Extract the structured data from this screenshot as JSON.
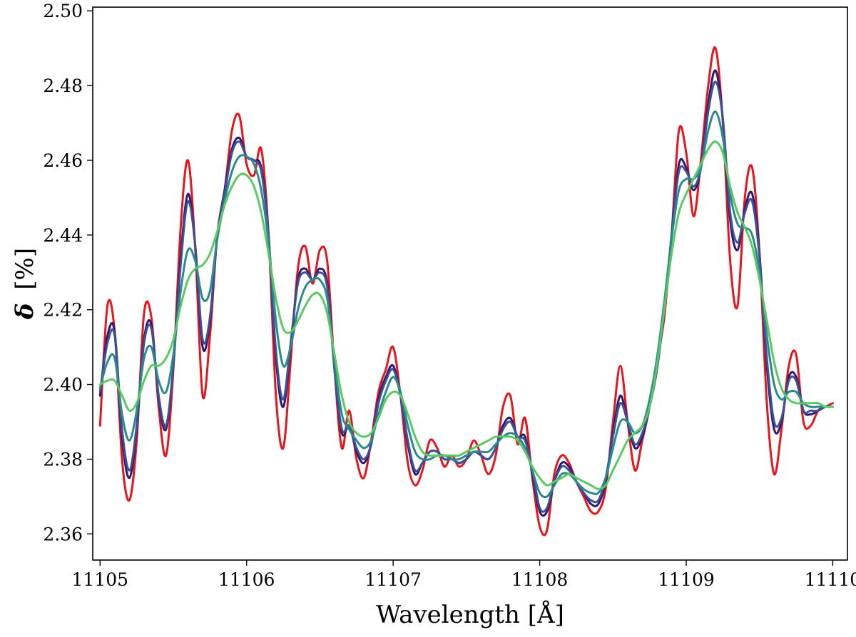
{
  "chart_data": {
    "type": "line",
    "xlabel": "Wavelength [Å]",
    "ylabel_symbol": "δ",
    "ylabel_unit": "[%]",
    "xlim": [
      11104.95,
      11110.1
    ],
    "ylim": [
      2.353,
      2.501
    ],
    "x_ticks": [
      11105,
      11106,
      11107,
      11108,
      11109,
      11110
    ],
    "x_tick_labels": [
      "11105",
      "11106",
      "11107",
      "11108",
      "11109",
      "11110"
    ],
    "y_ticks": [
      2.36,
      2.38,
      2.4,
      2.42,
      2.44,
      2.46,
      2.48,
      2.5
    ],
    "y_tick_labels": [
      "2.36",
      "2.38",
      "2.40",
      "2.42",
      "2.44",
      "2.46",
      "2.48",
      "2.50"
    ],
    "grid": false,
    "legend": "none",
    "series": [
      {
        "color": "#e8141c",
        "x": [
          11105.0,
          11105.05,
          11105.1,
          11105.15,
          11105.2,
          11105.25,
          11105.3,
          11105.35,
          11105.4,
          11105.45,
          11105.5,
          11105.55,
          11105.6,
          11105.65,
          11105.7,
          11105.75,
          11105.8,
          11105.85,
          11105.9,
          11105.95,
          11106.0,
          11106.05,
          11106.1,
          11106.15,
          11106.2,
          11106.25,
          11106.3,
          11106.35,
          11106.4,
          11106.45,
          11106.5,
          11106.55,
          11106.6,
          11106.65,
          11106.7,
          11106.75,
          11106.8,
          11106.85,
          11106.9,
          11106.95,
          11107.0,
          11107.05,
          11107.1,
          11107.15,
          11107.2,
          11107.25,
          11107.3,
          11107.35,
          11107.4,
          11107.45,
          11107.5,
          11107.55,
          11107.6,
          11107.65,
          11107.7,
          11107.75,
          11107.8,
          11107.85,
          11107.9,
          11107.95,
          11108.0,
          11108.05,
          11108.1,
          11108.15,
          11108.2,
          11108.25,
          11108.3,
          11108.35,
          11108.4,
          11108.45,
          11108.5,
          11108.55,
          11108.6,
          11108.65,
          11108.7,
          11108.75,
          11108.8,
          11108.85,
          11108.9,
          11108.95,
          11109.0,
          11109.05,
          11109.1,
          11109.15,
          11109.2,
          11109.25,
          11109.3,
          11109.35,
          11109.4,
          11109.45,
          11109.5,
          11109.55,
          11109.6,
          11109.65,
          11109.7,
          11109.75,
          11109.8,
          11109.85,
          11109.9,
          11109.95,
          11110.0
        ],
        "y": [
          2.389,
          2.421,
          2.414,
          2.38,
          2.369,
          2.385,
          2.419,
          2.418,
          2.394,
          2.381,
          2.404,
          2.442,
          2.46,
          2.436,
          2.397,
          2.413,
          2.44,
          2.452,
          2.468,
          2.472,
          2.459,
          2.456,
          2.463,
          2.44,
          2.397,
          2.383,
          2.406,
          2.431,
          2.437,
          2.427,
          2.436,
          2.433,
          2.404,
          2.383,
          2.393,
          2.38,
          2.375,
          2.385,
          2.398,
          2.404,
          2.41,
          2.397,
          2.379,
          2.373,
          2.377,
          2.385,
          2.383,
          2.378,
          2.381,
          2.378,
          2.38,
          2.385,
          2.381,
          2.376,
          2.381,
          2.394,
          2.397,
          2.384,
          2.391,
          2.375,
          2.362,
          2.361,
          2.376,
          2.381,
          2.379,
          2.374,
          2.37,
          2.366,
          2.366,
          2.372,
          2.39,
          2.405,
          2.39,
          2.377,
          2.385,
          2.394,
          2.406,
          2.418,
          2.44,
          2.468,
          2.462,
          2.445,
          2.46,
          2.48,
          2.49,
          2.47,
          2.433,
          2.421,
          2.45,
          2.458,
          2.435,
          2.395,
          2.376,
          2.388,
          2.405,
          2.408,
          2.39,
          2.389,
          2.393,
          2.394,
          2.395
        ]
      },
      {
        "color": "#2d1a6e",
        "x": [
          11105.0,
          11105.05,
          11105.1,
          11105.15,
          11105.2,
          11105.25,
          11105.3,
          11105.35,
          11105.4,
          11105.45,
          11105.5,
          11105.55,
          11105.6,
          11105.65,
          11105.7,
          11105.75,
          11105.8,
          11105.85,
          11105.9,
          11105.95,
          11106.0,
          11106.05,
          11106.1,
          11106.15,
          11106.2,
          11106.25,
          11106.3,
          11106.35,
          11106.4,
          11106.45,
          11106.5,
          11106.55,
          11106.6,
          11106.65,
          11106.7,
          11106.75,
          11106.8,
          11106.85,
          11106.9,
          11106.95,
          11107.0,
          11107.05,
          11107.1,
          11107.15,
          11107.2,
          11107.25,
          11107.3,
          11107.35,
          11107.4,
          11107.45,
          11107.5,
          11107.55,
          11107.6,
          11107.65,
          11107.7,
          11107.75,
          11107.8,
          11107.85,
          11107.9,
          11107.95,
          11108.0,
          11108.05,
          11108.1,
          11108.15,
          11108.2,
          11108.25,
          11108.3,
          11108.35,
          11108.4,
          11108.45,
          11108.5,
          11108.55,
          11108.6,
          11108.65,
          11108.7,
          11108.75,
          11108.8,
          11108.85,
          11108.9,
          11108.95,
          11109.0,
          11109.05,
          11109.1,
          11109.15,
          11109.2,
          11109.25,
          11109.3,
          11109.35,
          11109.4,
          11109.45,
          11109.5,
          11109.55,
          11109.6,
          11109.65,
          11109.7,
          11109.75,
          11109.8,
          11109.85,
          11109.9,
          11109.95,
          11110.0
        ],
        "y": [
          2.397,
          2.413,
          2.414,
          2.386,
          2.375,
          2.388,
          2.412,
          2.416,
          2.396,
          2.388,
          2.405,
          2.434,
          2.451,
          2.437,
          2.41,
          2.417,
          2.44,
          2.452,
          2.463,
          2.466,
          2.461,
          2.46,
          2.458,
          2.44,
          2.407,
          2.394,
          2.41,
          2.428,
          2.431,
          2.428,
          2.431,
          2.427,
          2.404,
          2.387,
          2.389,
          2.382,
          2.379,
          2.384,
          2.396,
          2.402,
          2.405,
          2.397,
          2.384,
          2.376,
          2.379,
          2.382,
          2.382,
          2.38,
          2.38,
          2.379,
          2.38,
          2.382,
          2.381,
          2.38,
          2.383,
          2.389,
          2.391,
          2.386,
          2.386,
          2.376,
          2.366,
          2.366,
          2.374,
          2.379,
          2.378,
          2.374,
          2.371,
          2.368,
          2.368,
          2.374,
          2.387,
          2.397,
          2.39,
          2.383,
          2.386,
          2.394,
          2.404,
          2.42,
          2.44,
          2.459,
          2.458,
          2.452,
          2.458,
          2.475,
          2.484,
          2.471,
          2.444,
          2.436,
          2.447,
          2.451,
          2.435,
          2.405,
          2.388,
          2.39,
          2.402,
          2.402,
          2.393,
          2.392,
          2.393,
          2.394,
          2.394
        ]
      },
      {
        "color": "#3d5195",
        "x": [
          11105.0,
          11105.05,
          11105.1,
          11105.15,
          11105.2,
          11105.25,
          11105.3,
          11105.35,
          11105.4,
          11105.45,
          11105.5,
          11105.55,
          11105.6,
          11105.65,
          11105.7,
          11105.75,
          11105.8,
          11105.85,
          11105.9,
          11105.95,
          11106.0,
          11106.05,
          11106.1,
          11106.15,
          11106.2,
          11106.25,
          11106.3,
          11106.35,
          11106.4,
          11106.45,
          11106.5,
          11106.55,
          11106.6,
          11106.65,
          11106.7,
          11106.75,
          11106.8,
          11106.85,
          11106.9,
          11106.95,
          11107.0,
          11107.05,
          11107.1,
          11107.15,
          11107.2,
          11107.25,
          11107.3,
          11107.35,
          11107.4,
          11107.45,
          11107.5,
          11107.55,
          11107.6,
          11107.65,
          11107.7,
          11107.75,
          11107.8,
          11107.85,
          11107.9,
          11107.95,
          11108.0,
          11108.05,
          11108.1,
          11108.15,
          11108.2,
          11108.25,
          11108.3,
          11108.35,
          11108.4,
          11108.45,
          11108.5,
          11108.55,
          11108.6,
          11108.65,
          11108.7,
          11108.75,
          11108.8,
          11108.85,
          11108.9,
          11108.95,
          11109.0,
          11109.05,
          11109.1,
          11109.15,
          11109.2,
          11109.25,
          11109.3,
          11109.35,
          11109.4,
          11109.45,
          11109.5,
          11109.55,
          11109.6,
          11109.65,
          11109.7,
          11109.75,
          11109.8,
          11109.85,
          11109.9,
          11109.95,
          11110.0
        ],
        "y": [
          2.398,
          2.411,
          2.413,
          2.388,
          2.377,
          2.389,
          2.411,
          2.415,
          2.397,
          2.389,
          2.405,
          2.432,
          2.449,
          2.437,
          2.412,
          2.418,
          2.44,
          2.451,
          2.462,
          2.465,
          2.461,
          2.46,
          2.457,
          2.44,
          2.409,
          2.396,
          2.411,
          2.427,
          2.43,
          2.428,
          2.43,
          2.426,
          2.404,
          2.388,
          2.389,
          2.383,
          2.38,
          2.384,
          2.395,
          2.401,
          2.404,
          2.397,
          2.385,
          2.377,
          2.379,
          2.382,
          2.382,
          2.38,
          2.38,
          2.379,
          2.38,
          2.382,
          2.381,
          2.38,
          2.383,
          2.388,
          2.39,
          2.386,
          2.385,
          2.377,
          2.367,
          2.367,
          2.374,
          2.378,
          2.377,
          2.374,
          2.371,
          2.369,
          2.369,
          2.375,
          2.386,
          2.395,
          2.39,
          2.384,
          2.387,
          2.394,
          2.404,
          2.42,
          2.44,
          2.457,
          2.457,
          2.453,
          2.458,
          2.473,
          2.481,
          2.471,
          2.446,
          2.438,
          2.446,
          2.449,
          2.434,
          2.407,
          2.39,
          2.391,
          2.401,
          2.401,
          2.393,
          2.393,
          2.393,
          2.394,
          2.394
        ]
      },
      {
        "color": "#2a8a8e",
        "x": [
          11105.0,
          11105.05,
          11105.1,
          11105.15,
          11105.2,
          11105.25,
          11105.3,
          11105.35,
          11105.4,
          11105.45,
          11105.5,
          11105.55,
          11105.6,
          11105.65,
          11105.7,
          11105.75,
          11105.8,
          11105.85,
          11105.9,
          11105.95,
          11106.0,
          11106.05,
          11106.1,
          11106.15,
          11106.2,
          11106.25,
          11106.3,
          11106.35,
          11106.4,
          11106.45,
          11106.5,
          11106.55,
          11106.6,
          11106.65,
          11106.7,
          11106.75,
          11106.8,
          11106.85,
          11106.9,
          11106.95,
          11107.0,
          11107.05,
          11107.1,
          11107.15,
          11107.2,
          11107.25,
          11107.3,
          11107.35,
          11107.4,
          11107.45,
          11107.5,
          11107.55,
          11107.6,
          11107.65,
          11107.7,
          11107.75,
          11107.8,
          11107.85,
          11107.9,
          11107.95,
          11108.0,
          11108.05,
          11108.1,
          11108.15,
          11108.2,
          11108.25,
          11108.3,
          11108.35,
          11108.4,
          11108.45,
          11108.5,
          11108.55,
          11108.6,
          11108.65,
          11108.7,
          11108.75,
          11108.8,
          11108.85,
          11108.9,
          11108.95,
          11109.0,
          11109.05,
          11109.1,
          11109.15,
          11109.2,
          11109.25,
          11109.3,
          11109.35,
          11109.4,
          11109.45,
          11109.5,
          11109.55,
          11109.6,
          11109.65,
          11109.7,
          11109.75,
          11109.8,
          11109.85,
          11109.9,
          11109.95,
          11110.0
        ],
        "y": [
          2.399,
          2.406,
          2.407,
          2.392,
          2.385,
          2.393,
          2.407,
          2.41,
          2.401,
          2.398,
          2.408,
          2.425,
          2.436,
          2.433,
          2.423,
          2.425,
          2.439,
          2.449,
          2.457,
          2.461,
          2.461,
          2.459,
          2.452,
          2.438,
          2.417,
          2.405,
          2.41,
          2.42,
          2.426,
          2.428,
          2.428,
          2.423,
          2.406,
          2.392,
          2.388,
          2.385,
          2.383,
          2.385,
          2.392,
          2.398,
          2.402,
          2.398,
          2.389,
          2.382,
          2.38,
          2.38,
          2.381,
          2.381,
          2.38,
          2.38,
          2.381,
          2.382,
          2.382,
          2.382,
          2.384,
          2.386,
          2.387,
          2.386,
          2.383,
          2.377,
          2.371,
          2.37,
          2.373,
          2.376,
          2.376,
          2.374,
          2.372,
          2.371,
          2.371,
          2.375,
          2.383,
          2.39,
          2.39,
          2.387,
          2.389,
          2.396,
          2.407,
          2.422,
          2.439,
          2.452,
          2.455,
          2.455,
          2.458,
          2.468,
          2.473,
          2.466,
          2.451,
          2.443,
          2.442,
          2.44,
          2.43,
          2.413,
          2.4,
          2.396,
          2.398,
          2.398,
          2.395,
          2.394,
          2.394,
          2.394,
          2.394
        ]
      },
      {
        "color": "#5cc864",
        "x": [
          11105.0,
          11105.05,
          11105.1,
          11105.15,
          11105.2,
          11105.25,
          11105.3,
          11105.35,
          11105.4,
          11105.45,
          11105.5,
          11105.55,
          11105.6,
          11105.65,
          11105.7,
          11105.75,
          11105.8,
          11105.85,
          11105.9,
          11105.95,
          11106.0,
          11106.05,
          11106.1,
          11106.15,
          11106.2,
          11106.25,
          11106.3,
          11106.35,
          11106.4,
          11106.45,
          11106.5,
          11106.55,
          11106.6,
          11106.65,
          11106.7,
          11106.75,
          11106.8,
          11106.85,
          11106.9,
          11106.95,
          11107.0,
          11107.05,
          11107.1,
          11107.15,
          11107.2,
          11107.25,
          11107.3,
          11107.35,
          11107.4,
          11107.45,
          11107.5,
          11107.55,
          11107.6,
          11107.65,
          11107.7,
          11107.75,
          11107.8,
          11107.85,
          11107.9,
          11107.95,
          11108.0,
          11108.05,
          11108.1,
          11108.15,
          11108.2,
          11108.25,
          11108.3,
          11108.35,
          11108.4,
          11108.45,
          11108.5,
          11108.55,
          11108.6,
          11108.65,
          11108.7,
          11108.75,
          11108.8,
          11108.85,
          11108.9,
          11108.95,
          11109.0,
          11109.05,
          11109.1,
          11109.15,
          11109.2,
          11109.25,
          11109.3,
          11109.35,
          11109.4,
          11109.45,
          11109.5,
          11109.55,
          11109.6,
          11109.65,
          11109.7,
          11109.75,
          11109.8,
          11109.85,
          11109.9,
          11109.95,
          11110.0
        ],
        "y": [
          2.4,
          2.401,
          2.401,
          2.397,
          2.393,
          2.395,
          2.401,
          2.405,
          2.405,
          2.407,
          2.412,
          2.421,
          2.428,
          2.431,
          2.432,
          2.435,
          2.441,
          2.448,
          2.453,
          2.456,
          2.456,
          2.453,
          2.446,
          2.435,
          2.423,
          2.415,
          2.414,
          2.417,
          2.421,
          2.424,
          2.424,
          2.419,
          2.408,
          2.397,
          2.39,
          2.387,
          2.386,
          2.387,
          2.391,
          2.396,
          2.398,
          2.397,
          2.392,
          2.386,
          2.382,
          2.381,
          2.381,
          2.381,
          2.381,
          2.381,
          2.382,
          2.383,
          2.384,
          2.385,
          2.386,
          2.386,
          2.386,
          2.385,
          2.382,
          2.378,
          2.375,
          2.373,
          2.374,
          2.375,
          2.376,
          2.375,
          2.374,
          2.373,
          2.372,
          2.373,
          2.377,
          2.381,
          2.385,
          2.387,
          2.389,
          2.394,
          2.405,
          2.42,
          2.435,
          2.446,
          2.451,
          2.455,
          2.459,
          2.463,
          2.465,
          2.462,
          2.453,
          2.446,
          2.442,
          2.437,
          2.428,
          2.417,
          2.406,
          2.399,
          2.396,
          2.395,
          2.395,
          2.395,
          2.395,
          2.394,
          2.394
        ]
      }
    ]
  }
}
